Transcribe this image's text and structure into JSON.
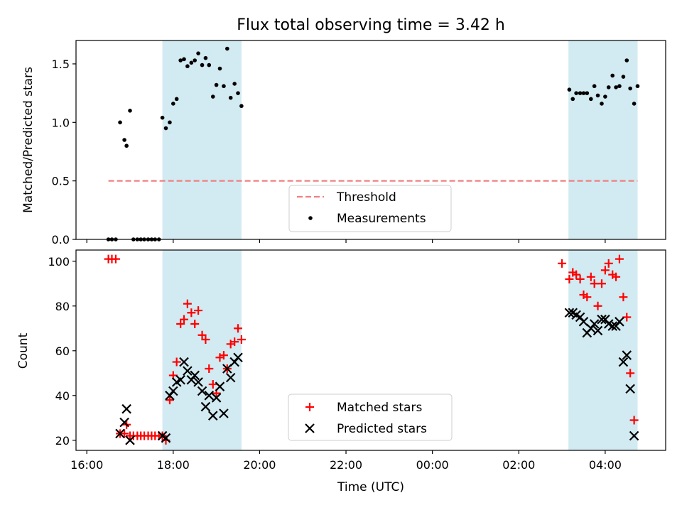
{
  "chart_data": [
    {
      "type": "scatter",
      "title": "Flux total observing time = 3.42 h",
      "xlabel": "",
      "ylabel": "Matched/Predicted stars",
      "xlim": [
        15.75,
        29.4
      ],
      "ylim": [
        0,
        1.7
      ],
      "yticks": [
        0.0,
        0.5,
        1.0,
        1.5
      ],
      "ytick_labels": [
        "0.0",
        "0.5",
        "1.0",
        "1.5"
      ],
      "shaded_intervals": [
        [
          17.75,
          19.58
        ],
        [
          27.15,
          28.75
        ]
      ],
      "shade_color": "#add8e6",
      "threshold": {
        "name": "Threshold",
        "value": 0.5,
        "x_range": [
          16.5,
          28.75
        ],
        "color": "#f08080",
        "style": "dashed"
      },
      "legend_position": "lower center",
      "series": [
        {
          "name": "Measurements",
          "color": "#000000",
          "marker": "dot",
          "x": [
            16.5,
            16.58,
            16.67,
            16.77,
            16.87,
            16.92,
            17.0,
            17.08,
            17.17,
            17.25,
            17.33,
            17.42,
            17.5,
            17.58,
            17.67,
            17.75,
            17.83,
            17.92,
            18.0,
            18.08,
            18.17,
            18.25,
            18.33,
            18.42,
            18.5,
            18.58,
            18.67,
            18.75,
            18.83,
            18.92,
            19.0,
            19.08,
            19.17,
            19.25,
            19.33,
            19.42,
            19.5,
            19.58,
            27.17,
            27.25,
            27.33,
            27.42,
            27.5,
            27.58,
            27.67,
            27.75,
            27.83,
            27.92,
            28.0,
            28.08,
            28.17,
            28.25,
            28.33,
            28.42,
            28.5,
            28.58,
            28.67,
            28.75
          ],
          "y": [
            0.0,
            0.0,
            0.0,
            1.0,
            0.85,
            0.8,
            1.1,
            0.0,
            0.0,
            0.0,
            0.0,
            0.0,
            0.0,
            0.0,
            0.0,
            1.04,
            0.95,
            1.0,
            1.16,
            1.2,
            1.53,
            1.54,
            1.48,
            1.51,
            1.53,
            1.59,
            1.49,
            1.55,
            1.49,
            1.22,
            1.32,
            1.46,
            1.31,
            1.63,
            1.21,
            1.33,
            1.25,
            1.14,
            1.28,
            1.2,
            1.25,
            1.25,
            1.25,
            1.25,
            1.2,
            1.31,
            1.23,
            1.16,
            1.22,
            1.3,
            1.4,
            1.3,
            1.31,
            1.39,
            1.53,
            1.29,
            1.16,
            1.31
          ]
        }
      ]
    },
    {
      "type": "scatter",
      "title": "",
      "xlabel": "Time (UTC)",
      "ylabel": "Count",
      "xlim": [
        15.75,
        29.4
      ],
      "ylim": [
        15.5,
        105
      ],
      "xticks": [
        16,
        18,
        20,
        22,
        24,
        26,
        28
      ],
      "xtick_labels": [
        "16:00",
        "18:00",
        "20:00",
        "22:00",
        "00:00",
        "02:00",
        "04:00"
      ],
      "yticks": [
        20,
        40,
        60,
        80,
        100
      ],
      "ytick_labels": [
        "20",
        "40",
        "60",
        "80",
        "100"
      ],
      "shaded_intervals": [
        [
          17.75,
          19.58
        ],
        [
          27.15,
          28.75
        ]
      ],
      "shade_color": "#add8e6",
      "legend_position": "lower center",
      "series": [
        {
          "name": "Matched stars",
          "color": "#ff0000",
          "marker": "plus",
          "x": [
            16.5,
            16.58,
            16.67,
            16.77,
            16.87,
            16.92,
            17.0,
            17.08,
            17.17,
            17.25,
            17.33,
            17.42,
            17.5,
            17.58,
            17.67,
            17.75,
            17.83,
            17.92,
            18.0,
            18.08,
            18.17,
            18.25,
            18.33,
            18.42,
            18.5,
            18.58,
            18.67,
            18.75,
            18.83,
            18.92,
            19.0,
            19.08,
            19.17,
            19.25,
            19.33,
            19.42,
            19.5,
            19.58,
            27.0,
            27.17,
            27.25,
            27.33,
            27.42,
            27.5,
            27.58,
            27.67,
            27.75,
            27.83,
            27.92,
            28.0,
            28.08,
            28.17,
            28.25,
            28.33,
            28.42,
            28.5,
            28.58,
            28.67,
            28.75
          ],
          "y": [
            101,
            101,
            101,
            23,
            23,
            27,
            22,
            22,
            22,
            22,
            22,
            22,
            22,
            22,
            22,
            22,
            20,
            38,
            49,
            55,
            72,
            74,
            81,
            77,
            72,
            78,
            67,
            65,
            52,
            45,
            41,
            57,
            58,
            52,
            63,
            64,
            70,
            65,
            99,
            92,
            95,
            94,
            92,
            85,
            84,
            93,
            90,
            80,
            90,
            96,
            99,
            94,
            93,
            101,
            84,
            75,
            50,
            29,
            null
          ],
          "y_display_note": ""
        },
        {
          "name": "Predicted stars",
          "color": "#000000",
          "marker": "x",
          "x": [
            16.77,
            16.87,
            16.92,
            17.0,
            17.75,
            17.83,
            17.92,
            18.0,
            18.08,
            18.17,
            18.25,
            18.33,
            18.42,
            18.5,
            18.58,
            18.67,
            18.75,
            18.83,
            18.92,
            19.0,
            19.08,
            19.17,
            19.25,
            19.33,
            19.42,
            19.5,
            27.17,
            27.25,
            27.33,
            27.42,
            27.5,
            27.58,
            27.67,
            27.75,
            27.83,
            27.92,
            28.0,
            28.08,
            28.17,
            28.25,
            28.33,
            28.42,
            28.5,
            28.58,
            28.67,
            28.75
          ],
          "y": [
            23,
            28,
            34,
            20,
            22,
            21,
            40,
            42,
            46,
            47,
            55,
            51,
            47,
            49,
            46,
            42,
            35,
            40,
            31,
            39,
            44,
            32,
            52,
            48,
            55,
            57,
            77,
            77,
            76,
            75,
            73,
            68,
            70,
            72,
            69,
            74,
            74,
            72,
            71,
            71,
            73,
            55,
            58,
            43,
            22,
            null
          ]
        }
      ]
    }
  ]
}
